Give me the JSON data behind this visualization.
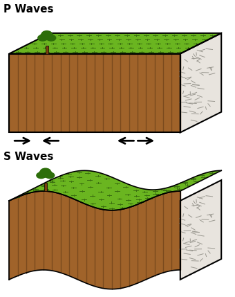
{
  "title1": "P Waves",
  "title2": "S Waves",
  "bg_color": "#ffffff",
  "brown_main": "#a0632a",
  "brown_stripe": "#7a4a1e",
  "green_grass": "#6ab520",
  "green_dark": "#2d6e0a",
  "gray_rock": "#e8e4de",
  "rock_mark": "#9a9890",
  "figsize": [
    3.4,
    4.29
  ],
  "dpi": 100
}
